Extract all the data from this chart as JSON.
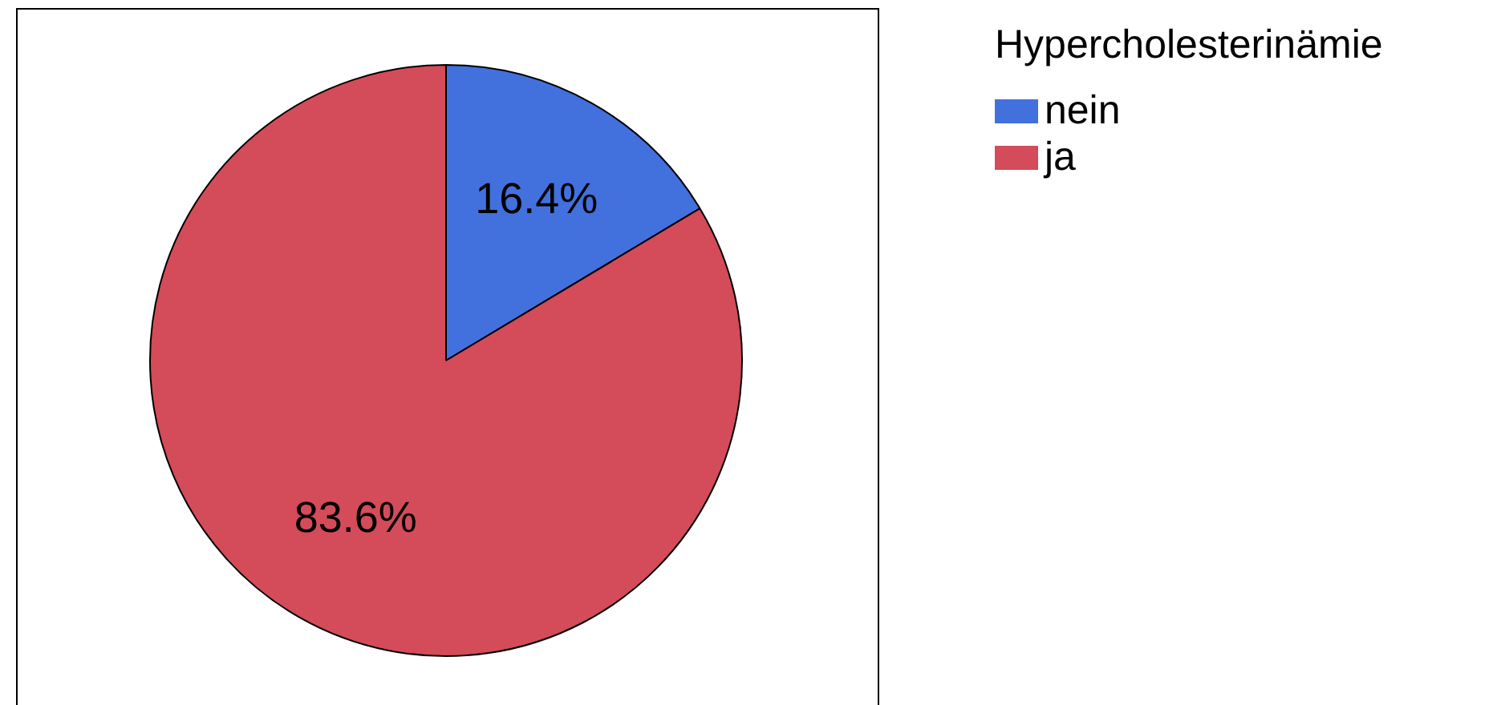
{
  "chart_data": {
    "type": "pie",
    "legend_title": "Hypercholesterinämie",
    "categories": [
      "nein",
      "ja"
    ],
    "values": [
      16.4,
      83.6
    ],
    "colors": [
      "#4270dd",
      "#d44b59"
    ],
    "value_labels": [
      "16.4%",
      "83.6%"
    ],
    "legend": "top right"
  }
}
